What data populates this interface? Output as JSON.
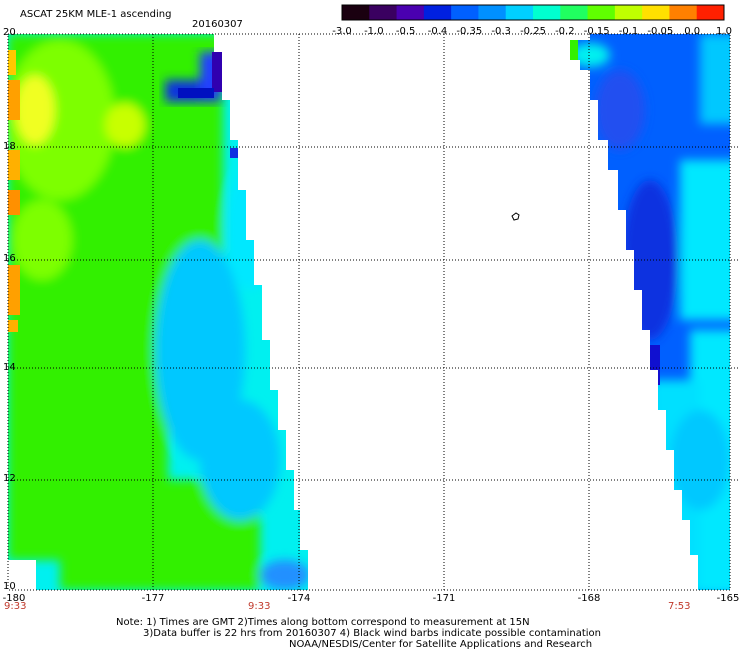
{
  "header": {
    "title": "ASCAT 25KM MLE-1 ascending",
    "date": "20160307"
  },
  "colorbar": {
    "ticks": [
      "-3.0",
      "-1.0",
      "-0.5",
      "-0.4",
      "-0.35",
      "-0.3",
      "-0.25",
      "-0.2",
      "-0.15",
      "-0.1",
      "-0.05",
      "0.0",
      "1.0"
    ],
    "colors": [
      "#1a0010",
      "#3a0060",
      "#4a00b0",
      "#0020e0",
      "#0060ff",
      "#0090ff",
      "#00d0ff",
      "#00ffd0",
      "#20ff60",
      "#60ff00",
      "#c0ff00",
      "#ffe000",
      "#ff8000",
      "#ff2000"
    ]
  },
  "map": {
    "lat_labels": [
      "20",
      "18",
      "16",
      "14",
      "12",
      "10"
    ],
    "lon_labels": [
      "-180",
      "-177",
      "-174",
      "-171",
      "-168",
      "-165"
    ],
    "times": [
      "9:33",
      "9:33",
      "7:53"
    ],
    "field_colors": {
      "green": "#33f000",
      "light_green": "#7dff00",
      "yellow": "#f0ff20",
      "orange": "#ffa000",
      "cyan": "#00f0f0",
      "light_cyan": "#00e8ff",
      "sky": "#00c8ff",
      "blue": "#0060ff",
      "deep_blue": "#1030e0",
      "purple": "#3000b0"
    }
  },
  "notes": {
    "line1": "Note: 1) Times are GMT 2)Times along bottom correspond to measurement at 15N",
    "line2": "3)Data buffer is 22 hrs from 20160307 4) Black wind barbs indicate possible contamination",
    "line3": "NOAA/NESDIS/Center for Satellite Applications and Research"
  }
}
